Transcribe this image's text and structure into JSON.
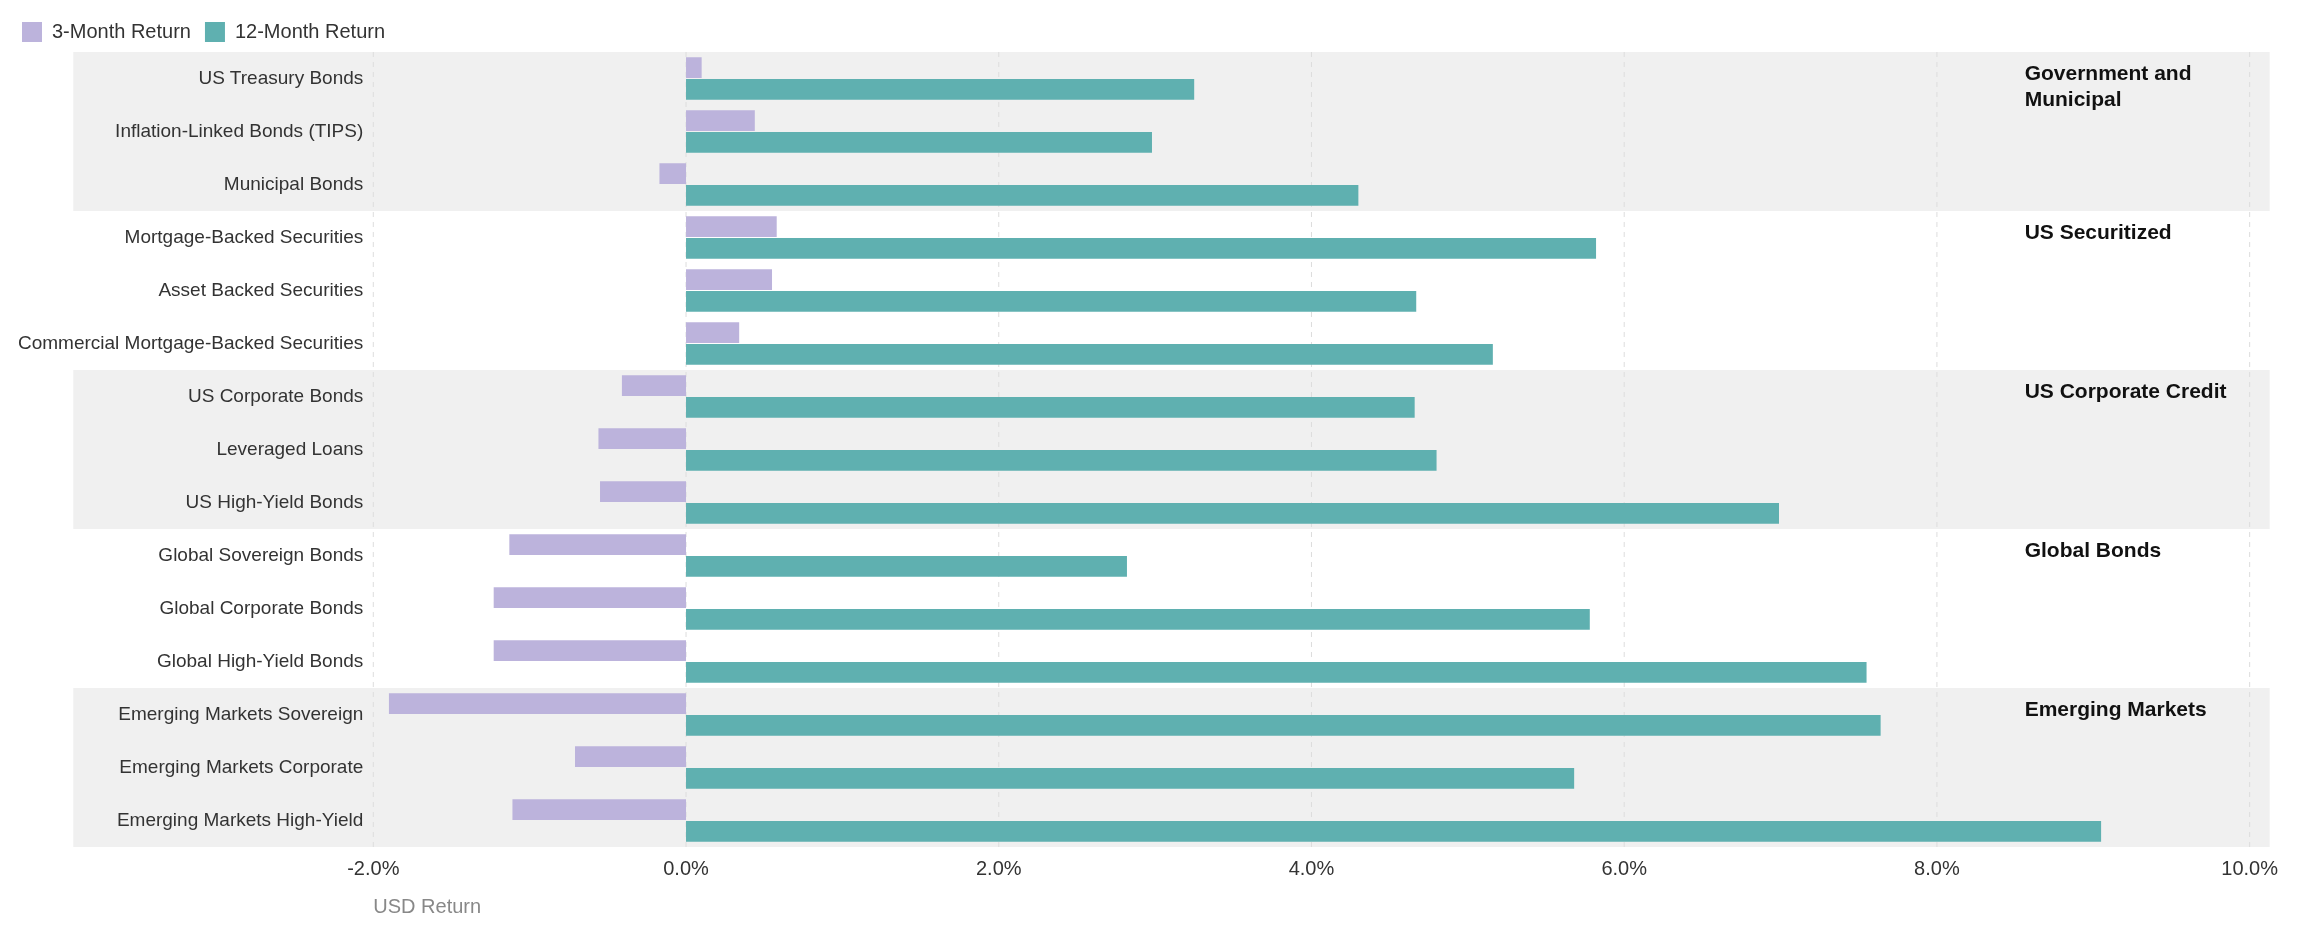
{
  "chart_data": {
    "type": "bar",
    "orientation": "horizontal",
    "xlabel": "USD Return",
    "legend": "top left",
    "grid": "x",
    "categories": [
      "US Treasury Bonds",
      "Inflation-Linked Bonds (TIPS)",
      "Municipal Bonds",
      "Mortgage-Backed Securities",
      "Asset Backed Securities",
      "Commercial Mortgage-Backed Securities",
      "US Corporate Bonds",
      "Leveraged Loans",
      "US High-Yield Bonds",
      "Global Sovereign Bonds",
      "Global Corporate Bonds",
      "Global High-Yield Bonds",
      "Emerging Markets Sovereign",
      "Emerging Markets Corporate",
      "Emerging Markets High-Yield"
    ],
    "series": [
      {
        "name": "3-Month Return",
        "color": "#bcb3dc",
        "values": [
          0.1,
          0.44,
          -0.17,
          0.58,
          0.55,
          0.34,
          -0.41,
          -0.56,
          -0.55,
          -1.13,
          -1.23,
          -1.23,
          -1.9,
          -0.71,
          -1.11
        ]
      },
      {
        "name": "12-Month Return",
        "color": "#5fb0b0",
        "values": [
          3.25,
          2.98,
          4.3,
          5.82,
          4.67,
          5.16,
          4.66,
          4.8,
          6.99,
          2.82,
          5.78,
          7.55,
          7.64,
          5.68,
          9.05
        ]
      }
    ],
    "xlim": [
      -2,
      10
    ],
    "xticks": [
      {
        "value": -2,
        "label": "-2.0%"
      },
      {
        "value": 0,
        "label": "0.0%"
      },
      {
        "value": 2,
        "label": "2.0%"
      },
      {
        "value": 4,
        "label": "4.0%"
      },
      {
        "value": 6,
        "label": "6.0%"
      },
      {
        "value": 8,
        "label": "8.0%"
      },
      {
        "value": 10,
        "label": "10.0%"
      }
    ],
    "bands": [
      {
        "axis": "y",
        "from": "US Treasury Bonds",
        "to": "Municipal Bonds",
        "label": "Government and Municipal",
        "color": "#f0f0f0"
      },
      {
        "axis": "y",
        "from": "US Corporate Bonds",
        "to": "US High-Yield Bonds",
        "label": "US Corporate Credit",
        "color": "#f0f0f0"
      },
      {
        "axis": "y",
        "from": "Emerging Markets Sovereign",
        "to": "Emerging Markets High-Yield",
        "label": "Emerging Markets",
        "color": "#f0f0f0"
      }
    ],
    "annotations": [
      "US Securitized",
      "Global Bonds"
    ]
  }
}
